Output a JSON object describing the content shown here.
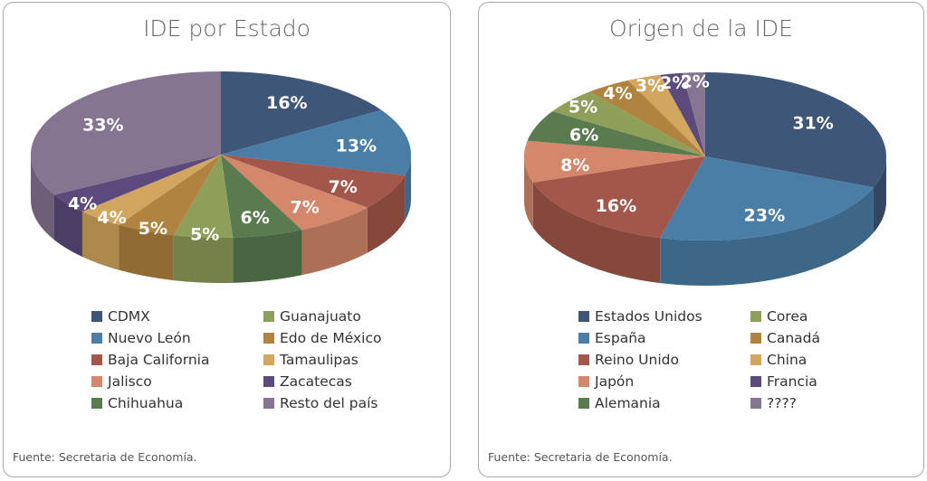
{
  "chart_data": [
    {
      "type": "pie",
      "title": "IDE por Estado",
      "source": "Fuente: Secretaria de Economía.",
      "categories": [
        "CDMX",
        "Nuevo León",
        "Baja California",
        "Jalisco",
        "Chihuahua",
        "Guanajuato",
        "Edo de México",
        "Tamaulipas",
        "Zacatecas",
        "Resto del país"
      ],
      "values": [
        16,
        13,
        7,
        7,
        6,
        5,
        5,
        4,
        4,
        33
      ],
      "labels": [
        "16%",
        "13%",
        "7%",
        "7%",
        "6%",
        "5%",
        "5%",
        "4%",
        "4%",
        "33%"
      ],
      "colors": [
        "#3e5678",
        "#4a7ea7",
        "#a3574a",
        "#d4876a",
        "#5a7b50",
        "#8e9f5a",
        "#b08440",
        "#d2a65e",
        "#5c4a7c",
        "#857590"
      ]
    },
    {
      "type": "pie",
      "title": "Origen de la IDE",
      "source": "Fuente: Secretaria de Economía.",
      "categories": [
        "Estados Unidos",
        "España",
        "Reino Unido",
        "Japón",
        "Alemania",
        "Corea",
        "Canadá",
        "China",
        "Francia",
        "????"
      ],
      "values": [
        31,
        23,
        16,
        8,
        6,
        5,
        4,
        3,
        2,
        2
      ],
      "labels": [
        "31%",
        "23%",
        "16%",
        "8%",
        "6%",
        "5%",
        "4%",
        "3%",
        "2%",
        "2%"
      ],
      "colors": [
        "#3e5678",
        "#4a7ea7",
        "#a3574a",
        "#d4876a",
        "#5a7b50",
        "#8e9f5a",
        "#b08440",
        "#d2a65e",
        "#5c4a7c",
        "#857590"
      ]
    }
  ]
}
